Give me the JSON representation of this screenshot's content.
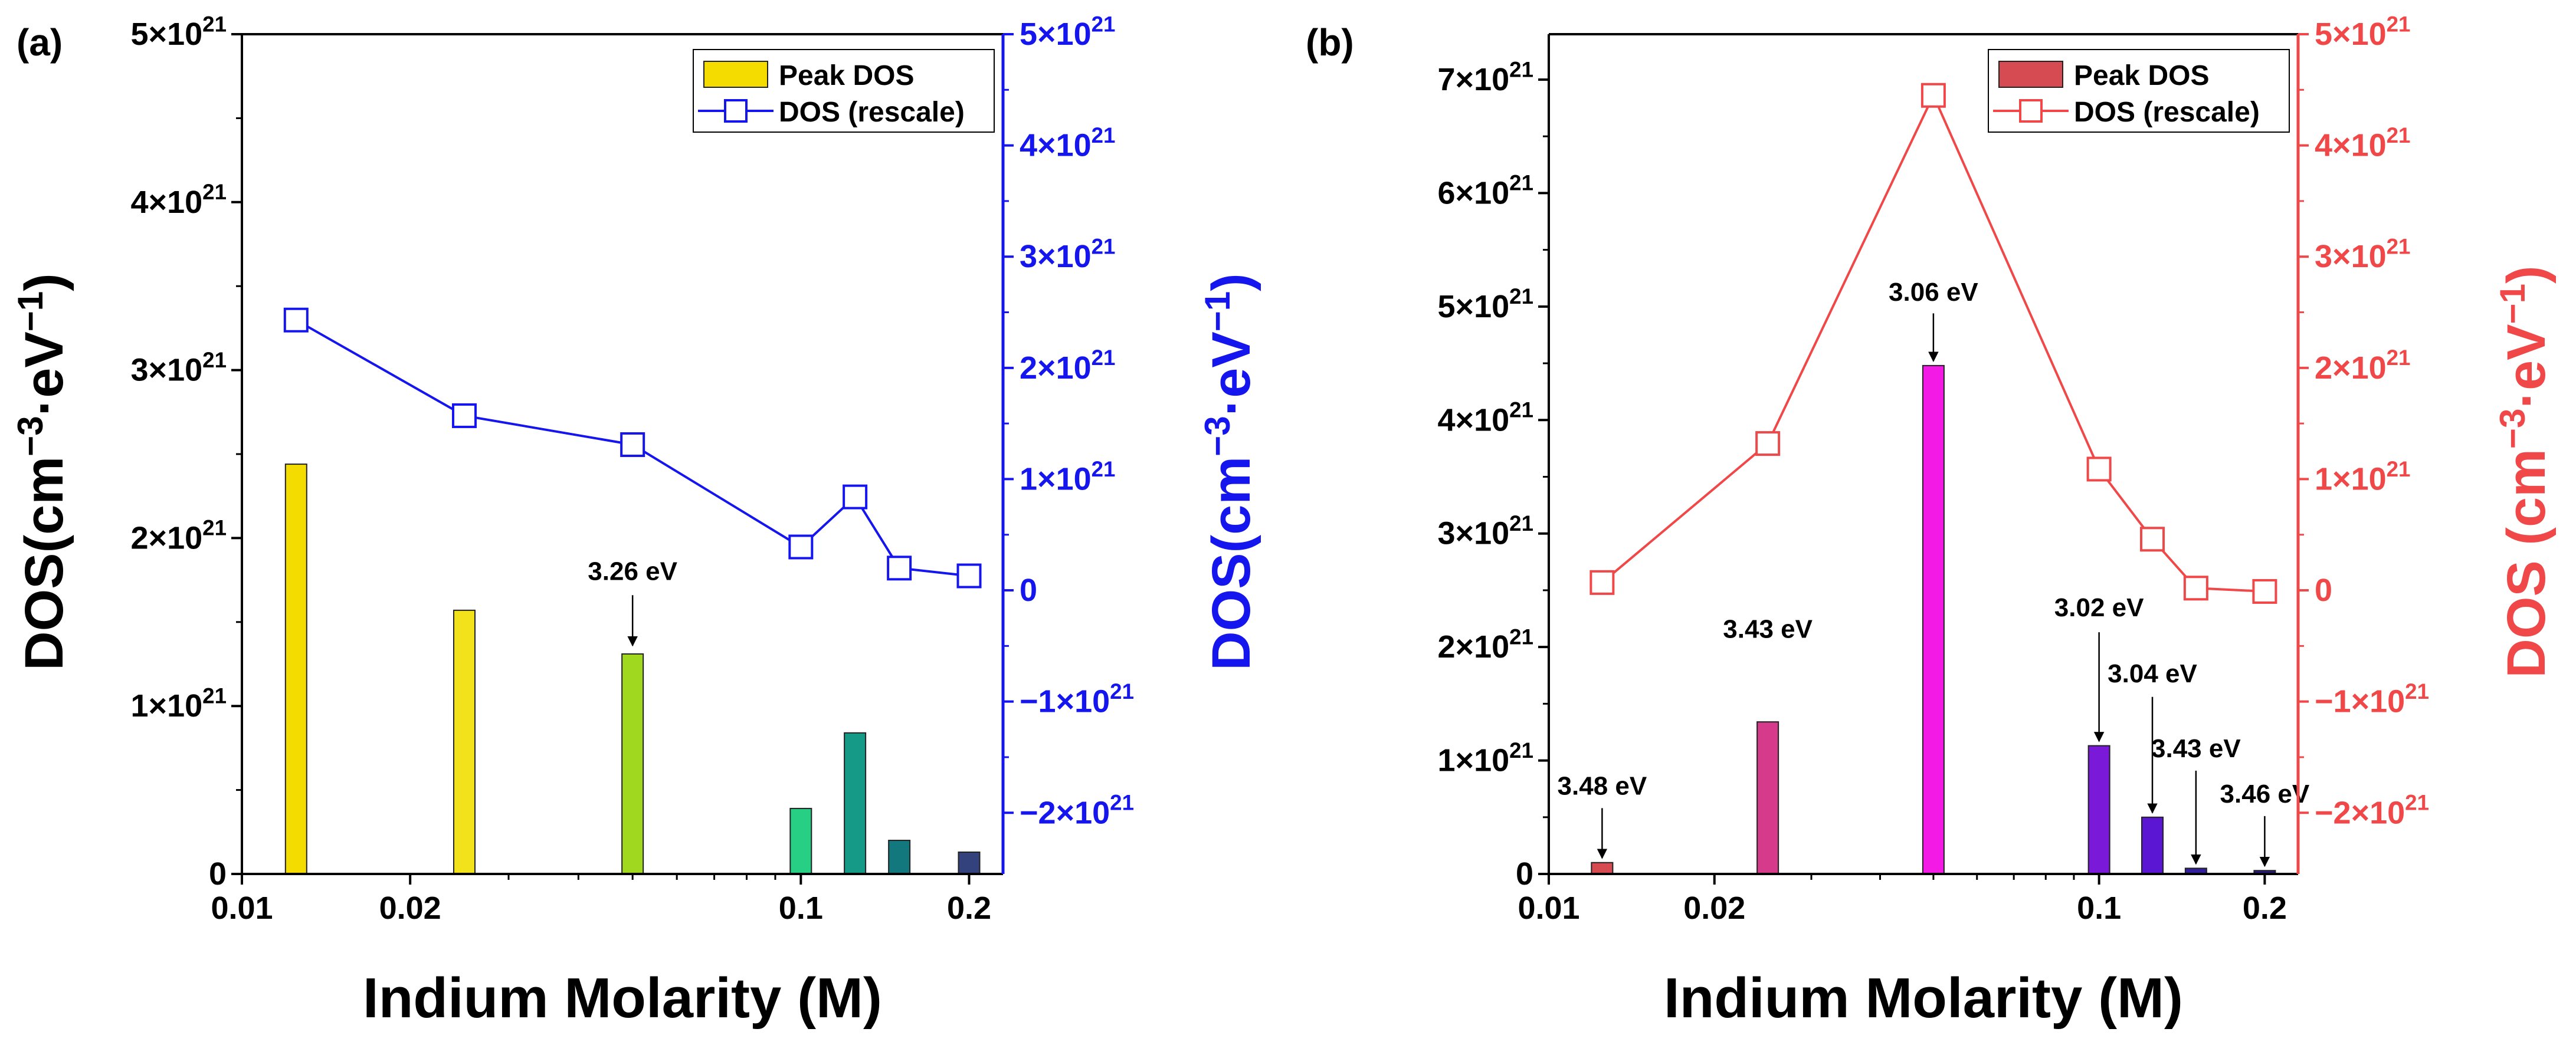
{
  "figure": {
    "panel_labels": [
      "(a)",
      "(b)"
    ],
    "xlabel": "Indium Molarity (M)",
    "x_ticks": [
      {
        "v": 0.01,
        "label": "0.01"
      },
      {
        "v": 0.02,
        "label": "0.02"
      },
      {
        "v": 0.1,
        "label": "0.1"
      },
      {
        "v": 0.2,
        "label": "0.2"
      }
    ],
    "legend": {
      "bar_label": "Peak DOS",
      "line_label": "DOS (rescale)"
    }
  },
  "chart_data": [
    {
      "type": "bar+line",
      "panel": "(a)",
      "xscale": "log",
      "xlim": [
        0.01,
        0.23
      ],
      "left_ylabel_main": "DOS(cm",
      "left_ylabel_sup1": "−3",
      "left_ylabel_mid": "·eV",
      "left_ylabel_sup2": "−1",
      "left_ylabel_end": ")",
      "right_ylabel_main": "DOS(cm",
      "right_ylabel_sup1": "−3",
      "right_ylabel_mid": "·eV",
      "right_ylabel_sup2": "−1",
      "right_ylabel_end": ")",
      "left_ylim": [
        0,
        5e+21
      ],
      "left_ticks": [
        {
          "v": 0,
          "m": "0",
          "e": ""
        },
        {
          "v": 1e+21,
          "m": "1×10",
          "e": "21"
        },
        {
          "v": 2e+21,
          "m": "2×10",
          "e": "21"
        },
        {
          "v": 3e+21,
          "m": "3×10",
          "e": "21"
        },
        {
          "v": 4e+21,
          "m": "4×10",
          "e": "21"
        },
        {
          "v": 5e+21,
          "m": "5×10",
          "e": "21"
        }
      ],
      "right_ylim": [
        -2.55e+21,
        5e+21
      ],
      "right_ticks": [
        {
          "v": -2e+21,
          "m": "−2×10",
          "e": "21"
        },
        {
          "v": -1e+21,
          "m": "−1×10",
          "e": "21"
        },
        {
          "v": 0,
          "m": "0",
          "e": ""
        },
        {
          "v": 1e+21,
          "m": "1×10",
          "e": "21"
        },
        {
          "v": 2e+21,
          "m": "2×10",
          "e": "21"
        },
        {
          "v": 3e+21,
          "m": "3×10",
          "e": "21"
        },
        {
          "v": 4e+21,
          "m": "4×10",
          "e": "21"
        },
        {
          "v": 5e+21,
          "m": "5×10",
          "e": "21"
        }
      ],
      "axis_color": "#1515ee",
      "bars": [
        {
          "x": 0.0125,
          "value": 2.44e+21,
          "color": "#f5dc00"
        },
        {
          "x": 0.025,
          "value": 1.57e+21,
          "color": "#f2e21c"
        },
        {
          "x": 0.05,
          "value": 1.31e+21,
          "color": "#9fd81e"
        },
        {
          "x": 0.1,
          "value": 3.9e+20,
          "color": "#26cf84"
        },
        {
          "x": 0.125,
          "value": 8.4e+20,
          "color": "#149a86"
        },
        {
          "x": 0.15,
          "value": 2e+20,
          "color": "#12787e"
        },
        {
          "x": 0.2,
          "value": 1.3e+20,
          "color": "#33427c"
        }
      ],
      "line": {
        "color": "#1515ee",
        "points": [
          {
            "x": 0.0125,
            "y": 2.43e+21
          },
          {
            "x": 0.025,
            "y": 1.57e+21
          },
          {
            "x": 0.05,
            "y": 1.31e+21
          },
          {
            "x": 0.1,
            "y": 3.9e+20
          },
          {
            "x": 0.125,
            "y": 8.4e+20
          },
          {
            "x": 0.15,
            "y": 2e+20
          },
          {
            "x": 0.2,
            "y": 1.3e+20
          }
        ]
      },
      "annotations": [
        {
          "x": 0.05,
          "label": "3.26 eV",
          "label_y": 1.75e+21,
          "arrow_from": 1.66e+21,
          "arrow_to": 1.36e+21
        }
      ]
    },
    {
      "type": "bar+line",
      "panel": "(b)",
      "xscale": "log",
      "xlim": [
        0.01,
        0.23
      ],
      "left_ylabel_main": "",
      "right_ylabel_main": "DOS (cm",
      "right_ylabel_sup1": "−3",
      "right_ylabel_mid": "·eV",
      "right_ylabel_sup2": "−1",
      "right_ylabel_end": ")",
      "left_ylim": [
        0,
        7.4e+21
      ],
      "left_ticks": [
        {
          "v": 0,
          "m": "0",
          "e": ""
        },
        {
          "v": 1e+21,
          "m": "1×10",
          "e": "21"
        },
        {
          "v": 2e+21,
          "m": "2×10",
          "e": "21"
        },
        {
          "v": 3e+21,
          "m": "3×10",
          "e": "21"
        },
        {
          "v": 4e+21,
          "m": "4×10",
          "e": "21"
        },
        {
          "v": 5e+21,
          "m": "5×10",
          "e": "21"
        },
        {
          "v": 6e+21,
          "m": "6×10",
          "e": "21"
        },
        {
          "v": 7e+21,
          "m": "7×10",
          "e": "21"
        }
      ],
      "right_ylim": [
        -2.55e+21,
        5e+21
      ],
      "right_ticks": [
        {
          "v": -2e+21,
          "m": "−2×10",
          "e": "21"
        },
        {
          "v": -1e+21,
          "m": "−1×10",
          "e": "21"
        },
        {
          "v": 0,
          "m": "0",
          "e": ""
        },
        {
          "v": 1e+21,
          "m": "1×10",
          "e": "21"
        },
        {
          "v": 2e+21,
          "m": "2×10",
          "e": "21"
        },
        {
          "v": 3e+21,
          "m": "3×10",
          "e": "21"
        },
        {
          "v": 4e+21,
          "m": "4×10",
          "e": "21"
        },
        {
          "v": 5e+21,
          "m": "5×10",
          "e": "21"
        }
      ],
      "axis_color": "#f04848",
      "bars": [
        {
          "x": 0.0125,
          "value": 1e+20,
          "color": "#d64a52"
        },
        {
          "x": 0.025,
          "value": 1.34e+21,
          "color": "#d63a8a"
        },
        {
          "x": 0.05,
          "value": 4.48e+21,
          "color": "#f41ae6"
        },
        {
          "x": 0.1,
          "value": 1.13e+21,
          "color": "#7a1ad8"
        },
        {
          "x": 0.125,
          "value": 5e+20,
          "color": "#5a16d2"
        },
        {
          "x": 0.15,
          "value": 5e+19,
          "color": "#32209c"
        },
        {
          "x": 0.2,
          "value": 3e+19,
          "color": "#2a1880"
        }
      ],
      "line": {
        "color": "#f04848",
        "points": [
          {
            "x": 0.0125,
            "y": 7e+19
          },
          {
            "x": 0.025,
            "y": 1.32e+21
          },
          {
            "x": 0.05,
            "y": 4.45e+21
          },
          {
            "x": 0.1,
            "y": 1.09e+21
          },
          {
            "x": 0.125,
            "y": 4.6e+20
          },
          {
            "x": 0.15,
            "y": 2e+19
          },
          {
            "x": 0.2,
            "y": -1e+19
          }
        ]
      },
      "annotations": [
        {
          "x": 0.0125,
          "label": "3.48 eV",
          "label_y": 7e+20,
          "arrow_from": 5.8e+20,
          "arrow_to": 1.4e+20
        },
        {
          "x": 0.025,
          "label": "3.43 eV",
          "label_y": 2.08e+21,
          "arrow_from": 0,
          "arrow_to": 0
        },
        {
          "x": 0.05,
          "label": "3.06 eV",
          "label_y": 5.05e+21,
          "arrow_from": 4.94e+21,
          "arrow_to": 4.52e+21
        },
        {
          "x": 0.1,
          "label": "3.02 eV",
          "label_y": 2.27e+21,
          "arrow_from": 2.13e+21,
          "arrow_to": 1.17e+21
        },
        {
          "x": 0.125,
          "label": "3.04 eV",
          "label_y": 1.69e+21,
          "arrow_from": 1.56e+21,
          "arrow_to": 5.4e+20
        },
        {
          "x": 0.15,
          "label": "3.43 eV",
          "label_y": 1.03e+21,
          "arrow_from": 9.1e+20,
          "arrow_to": 9e+19
        },
        {
          "x": 0.2,
          "label": "3.46 eV",
          "label_y": 6.3e+20,
          "arrow_from": 5.1e+20,
          "arrow_to": 7e+19
        }
      ]
    }
  ]
}
